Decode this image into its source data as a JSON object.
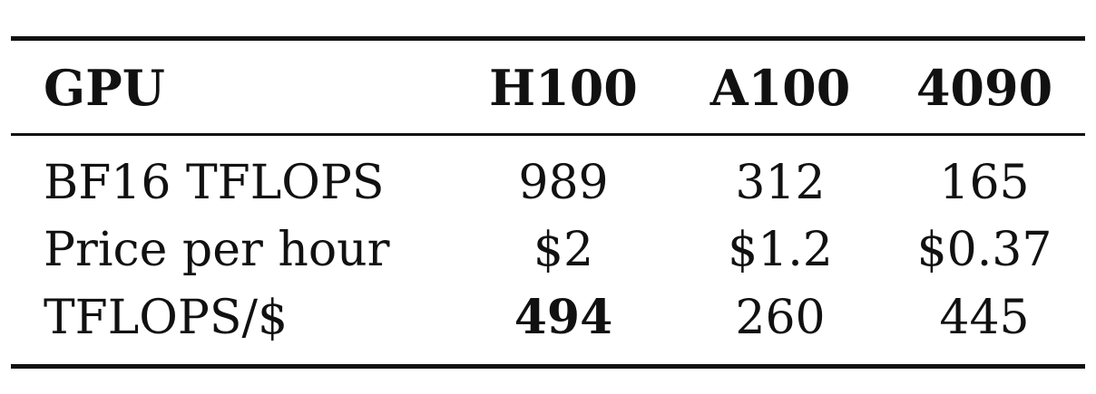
{
  "table": {
    "header": {
      "label": "GPU",
      "columns": [
        "H100",
        "A100",
        "4090"
      ]
    },
    "rows": [
      {
        "label": "BF16 TFLOPS",
        "values": [
          "989",
          "312",
          "165"
        ]
      },
      {
        "label": "Price per hour",
        "values": [
          "$2",
          "$1.2",
          "$0.37"
        ]
      },
      {
        "label": "TFLOPS/$",
        "values": [
          "494",
          "260",
          "445"
        ],
        "bold_index": 0
      }
    ]
  }
}
